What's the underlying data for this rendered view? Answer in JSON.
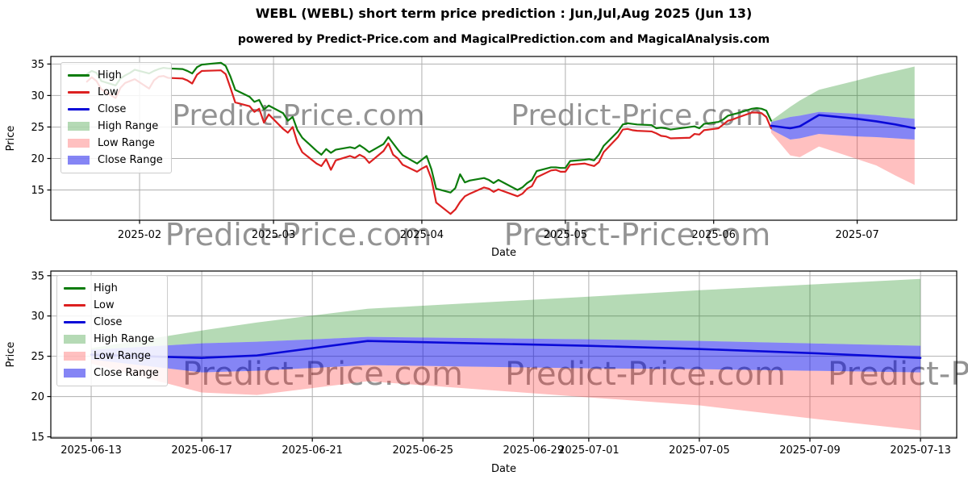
{
  "title": "WEBL (WEBL) short term price prediction : Jun,Jul,Aug 2025 (Jun 13)",
  "subtitle": "powered by Predict-Price.com and MagicalPrediction.com and MagicalAnalysis.com",
  "watermark": "Predict-Price.com",
  "colors": {
    "high": "#0c7c0c",
    "low": "#dc2020",
    "close": "#0a0ad8",
    "high_range": "rgba(0,128,0,0.29)",
    "low_range": "rgba(255,45,45,0.30)",
    "close_range": "rgba(0,0,235,0.48)",
    "grid": "#b0b0b0",
    "axis": "#000000",
    "watermark_color": "#aaaaaa"
  },
  "legend": {
    "items": [
      {
        "key": "high",
        "label": "High",
        "swatch": "line",
        "color": "#0c7c0c"
      },
      {
        "key": "low",
        "label": "Low",
        "swatch": "line",
        "color": "#dc2020"
      },
      {
        "key": "close",
        "label": "Close",
        "swatch": "line",
        "color": "#0a0ad8"
      },
      {
        "key": "high-range",
        "label": "High Range",
        "swatch": "patch",
        "color": "rgba(0,128,0,0.29)"
      },
      {
        "key": "low-range",
        "label": "Low Range",
        "swatch": "patch",
        "color": "rgba(255,45,45,0.30)"
      },
      {
        "key": "close-range",
        "label": "Close Range",
        "swatch": "patch",
        "color": "rgba(0,0,235,0.48)"
      }
    ]
  },
  "chart_data": [
    {
      "type": "line",
      "title": "",
      "xlabel": "Date",
      "ylabel": "Price",
      "grid": true,
      "legend_position": "upper left",
      "ylim": [
        10.2,
        36.2
      ],
      "yticks": [
        15,
        20,
        25,
        30,
        35
      ],
      "xlim_days": [
        13.45,
        202.8
      ],
      "xticks": [
        "2025-02",
        "2025-03",
        "2025-04",
        "2025-05",
        "2025-06",
        "2025-07"
      ],
      "history": {
        "dates": [
          "2025-01-21",
          "2025-01-22",
          "2025-01-23",
          "2025-01-24",
          "2025-01-27",
          "2025-01-28",
          "2025-01-29",
          "2025-01-30",
          "2025-01-31",
          "2025-02-03",
          "2025-02-04",
          "2025-02-05",
          "2025-02-06",
          "2025-02-07",
          "2025-02-10",
          "2025-02-11",
          "2025-02-12",
          "2025-02-13",
          "2025-02-14",
          "2025-02-18",
          "2025-02-19",
          "2025-02-20",
          "2025-02-21",
          "2025-02-24",
          "2025-02-25",
          "2025-02-26",
          "2025-02-27",
          "2025-02-28",
          "2025-03-03",
          "2025-03-04",
          "2025-03-05",
          "2025-03-06",
          "2025-03-07",
          "2025-03-10",
          "2025-03-11",
          "2025-03-12",
          "2025-03-13",
          "2025-03-14",
          "2025-03-17",
          "2025-03-18",
          "2025-03-19",
          "2025-03-20",
          "2025-03-21",
          "2025-03-24",
          "2025-03-25",
          "2025-03-26",
          "2025-03-27",
          "2025-03-28",
          "2025-03-31",
          "2025-04-01",
          "2025-04-02",
          "2025-04-03",
          "2025-04-04",
          "2025-04-07",
          "2025-04-08",
          "2025-04-09",
          "2025-04-10",
          "2025-04-11",
          "2025-04-14",
          "2025-04-15",
          "2025-04-16",
          "2025-04-17",
          "2025-04-21",
          "2025-04-22",
          "2025-04-23",
          "2025-04-24",
          "2025-04-25",
          "2025-04-28",
          "2025-04-29",
          "2025-04-30",
          "2025-05-01",
          "2025-05-02",
          "2025-05-05",
          "2025-05-06",
          "2025-05-07",
          "2025-05-08",
          "2025-05-09",
          "2025-05-12",
          "2025-05-13",
          "2025-05-14",
          "2025-05-15",
          "2025-05-16",
          "2025-05-19",
          "2025-05-20",
          "2025-05-21",
          "2025-05-22",
          "2025-05-23",
          "2025-05-27",
          "2025-05-28",
          "2025-05-29",
          "2025-05-30",
          "2025-06-02",
          "2025-06-03",
          "2025-06-04",
          "2025-06-05",
          "2025-06-06",
          "2025-06-09",
          "2025-06-10",
          "2025-06-11",
          "2025-06-12",
          "2025-06-13"
        ],
        "high": [
          33.4,
          33.9,
          33.6,
          32.3,
          31.6,
          32.7,
          33.2,
          33.6,
          34.1,
          33.5,
          33.9,
          34.2,
          34.4,
          34.3,
          34.2,
          33.9,
          33.5,
          34.5,
          34.9,
          35.2,
          34.7,
          33.0,
          30.9,
          29.8,
          29.0,
          29.3,
          27.8,
          28.4,
          27.2,
          26.0,
          26.6,
          24.5,
          23.3,
          21.2,
          20.6,
          21.5,
          20.9,
          21.4,
          21.8,
          21.6,
          22.1,
          21.6,
          21.0,
          22.3,
          23.4,
          22.4,
          21.4,
          20.5,
          19.2,
          19.8,
          20.4,
          18.3,
          15.2,
          14.6,
          15.3,
          17.5,
          16.2,
          16.5,
          16.9,
          16.6,
          16.1,
          16.6,
          15.0,
          15.4,
          16.1,
          16.6,
          18.0,
          18.6,
          18.6,
          18.5,
          18.5,
          19.6,
          19.8,
          19.9,
          19.7,
          20.6,
          22.0,
          24.3,
          25.4,
          25.6,
          25.5,
          25.4,
          25.3,
          24.8,
          24.9,
          24.8,
          24.6,
          25.0,
          25.1,
          24.8,
          25.5,
          25.8,
          26.2,
          26.8,
          27.0,
          27.2,
          27.9,
          28.0,
          27.9,
          27.6,
          26.0
        ],
        "low": [
          32.2,
          32.9,
          32.3,
          31.0,
          29.6,
          31.2,
          32.0,
          32.3,
          32.6,
          31.1,
          32.4,
          33.0,
          33.1,
          32.8,
          32.7,
          32.4,
          31.9,
          33.3,
          33.9,
          34.0,
          33.4,
          31.2,
          28.9,
          28.3,
          27.4,
          27.9,
          25.7,
          27.0,
          24.7,
          24.1,
          25.0,
          22.5,
          21.0,
          19.2,
          18.8,
          19.9,
          18.2,
          19.7,
          20.4,
          20.1,
          20.6,
          20.2,
          19.3,
          21.2,
          22.4,
          20.6,
          20.0,
          19.0,
          17.9,
          18.4,
          18.8,
          16.8,
          13.0,
          11.2,
          11.9,
          13.1,
          14.0,
          14.4,
          15.4,
          15.2,
          14.7,
          15.1,
          14.0,
          14.4,
          15.2,
          15.6,
          17.0,
          18.1,
          18.2,
          17.9,
          17.9,
          19.0,
          19.2,
          19.0,
          18.8,
          19.4,
          21.0,
          23.4,
          24.6,
          24.7,
          24.5,
          24.4,
          24.3,
          24.0,
          23.6,
          23.5,
          23.2,
          23.3,
          23.9,
          23.8,
          24.5,
          24.8,
          25.4,
          26.0,
          26.2,
          26.5,
          27.3,
          27.3,
          27.2,
          26.6,
          24.8
        ]
      },
      "prediction": {
        "dates": [
          "2025-06-13",
          "2025-06-17",
          "2025-06-19",
          "2025-06-23",
          "2025-07-01",
          "2025-07-05",
          "2025-07-09",
          "2025-07-13"
        ],
        "close": [
          25.2,
          24.8,
          25.1,
          26.9,
          26.3,
          25.9,
          25.4,
          24.8
        ],
        "close_upper": [
          25.8,
          26.6,
          26.8,
          27.4,
          27.1,
          26.9,
          26.6,
          26.3
        ],
        "close_lower": [
          24.6,
          23.0,
          23.2,
          23.9,
          23.5,
          23.4,
          23.2,
          23.0
        ],
        "high_upper": [
          26.0,
          28.2,
          29.2,
          30.9,
          32.4,
          33.2,
          33.9,
          34.6
        ],
        "low_lower": [
          24.1,
          20.5,
          20.2,
          21.9,
          19.9,
          18.9,
          17.3,
          15.8
        ]
      }
    },
    {
      "type": "line",
      "title": "",
      "xlabel": "Date",
      "ylabel": "Price",
      "grid": true,
      "legend_position": "upper left",
      "ylim": [
        14.85,
        35.58
      ],
      "yticks": [
        15,
        20,
        25,
        30,
        35
      ],
      "xlim_days": [
        162.54,
        195.31
      ],
      "xticks": [
        "2025-06-13",
        "2025-06-17",
        "2025-06-21",
        "2025-06-25",
        "2025-06-29",
        "2025-07-01",
        "2025-07-05",
        "2025-07-09",
        "2025-07-13"
      ],
      "prediction": {
        "dates": [
          "2025-06-13",
          "2025-06-17",
          "2025-06-19",
          "2025-06-23",
          "2025-07-01",
          "2025-07-05",
          "2025-07-09",
          "2025-07-13"
        ],
        "close": [
          25.2,
          24.8,
          25.1,
          26.9,
          26.3,
          25.9,
          25.4,
          24.8
        ],
        "close_upper": [
          25.8,
          26.6,
          26.8,
          27.4,
          27.1,
          26.9,
          26.6,
          26.3
        ],
        "close_lower": [
          24.6,
          23.0,
          23.2,
          23.9,
          23.5,
          23.4,
          23.2,
          23.0
        ],
        "high_upper": [
          26.0,
          28.2,
          29.2,
          30.9,
          32.4,
          33.2,
          33.9,
          34.6
        ],
        "low_lower": [
          24.1,
          20.5,
          20.2,
          21.9,
          19.9,
          18.9,
          17.3,
          15.8
        ]
      }
    }
  ]
}
